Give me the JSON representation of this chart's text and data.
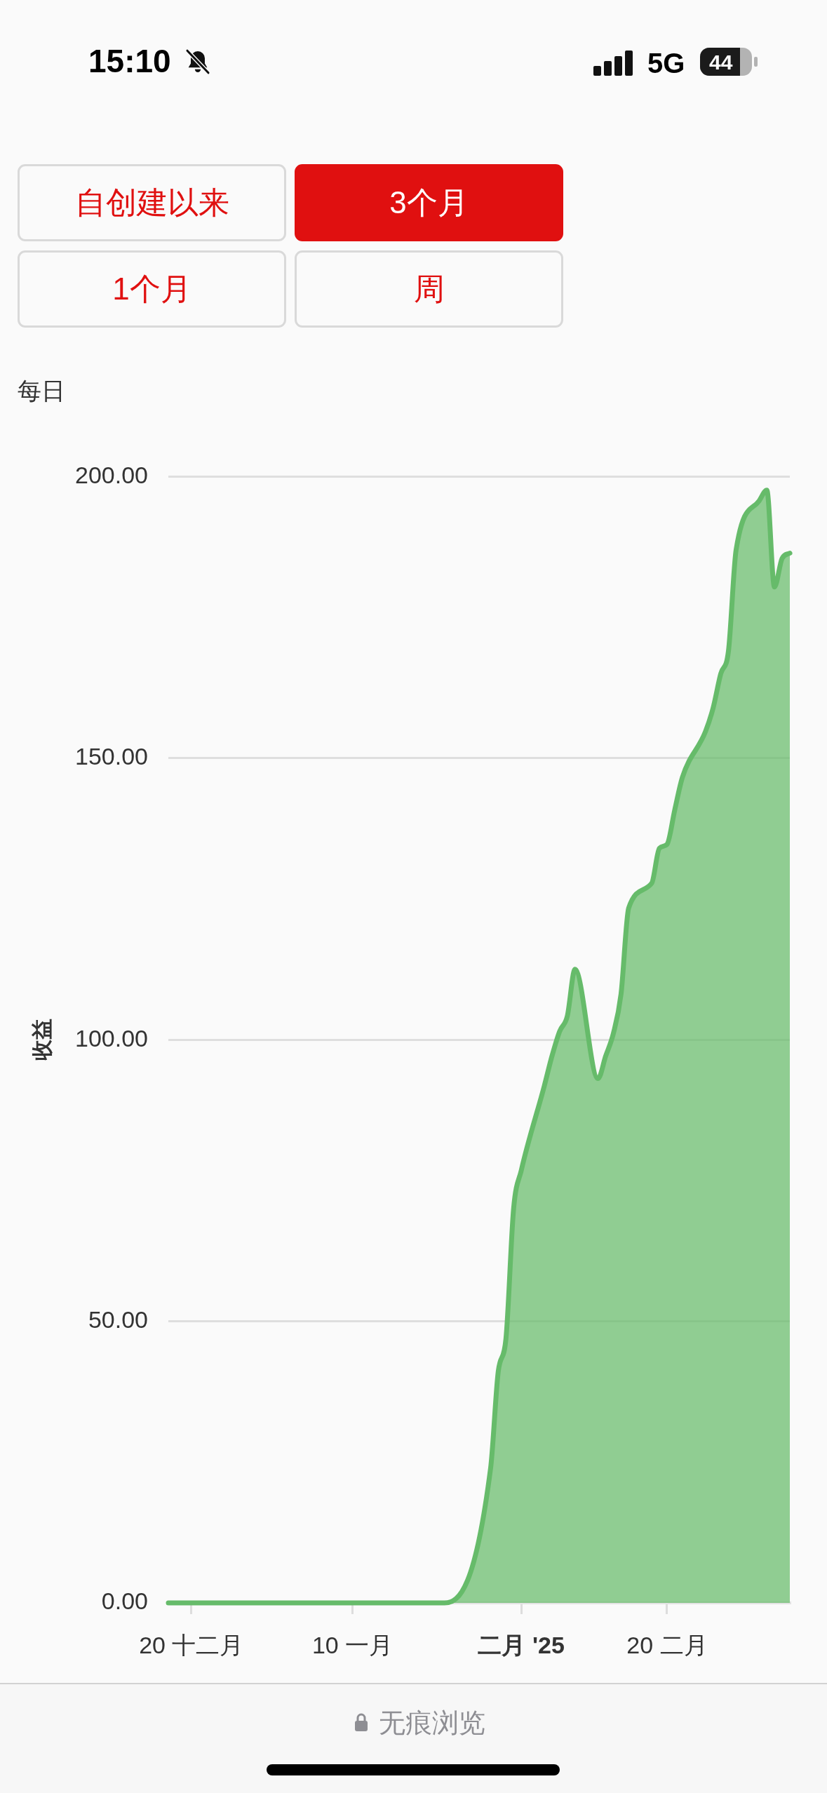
{
  "chart_data": {
    "type": "area",
    "subtitle": "每日",
    "ylabel": "收益",
    "x": [
      "2024-12-17",
      "2025-01-22",
      "2025-01-28",
      "2025-01-29",
      "2025-01-30",
      "2025-01-31",
      "2025-02-01",
      "2025-02-04",
      "2025-02-05",
      "2025-02-06",
      "2025-02-07",
      "2025-02-08",
      "2025-02-11",
      "2025-02-12",
      "2025-02-13",
      "2025-02-14",
      "2025-02-15",
      "2025-02-18",
      "2025-02-19",
      "2025-02-20",
      "2025-02-21",
      "2025-02-22",
      "2025-02-25",
      "2025-02-26",
      "2025-02-27",
      "2025-02-28",
      "2025-03-01",
      "2025-03-04",
      "2025-03-05",
      "2025-03-06",
      "2025-03-07",
      "2025-03-08"
    ],
    "values": [
      0,
      0,
      23.9,
      41.1,
      46.9,
      70.0,
      76.8,
      91.8,
      97.1,
      101.5,
      104.2,
      112.5,
      93.1,
      97.1,
      101.1,
      108.1,
      123.4,
      127.8,
      134.0,
      134.7,
      140.8,
      146.6,
      154.7,
      158.9,
      165.0,
      169.0,
      187.0,
      195.7,
      197.6,
      180.4,
      185.5,
      186.4
    ],
    "color": "#66bb6a",
    "xlim": [
      "2024-12-17",
      "2025-03-08"
    ],
    "xticks": [
      {
        "value": "2024-12-20",
        "label": "20 十二月"
      },
      {
        "value": "2025-01-10",
        "label": "10 一月"
      },
      {
        "value": "2025-02-01",
        "label": "二月 '25"
      },
      {
        "value": "2025-02-20",
        "label": "20 二月"
      }
    ],
    "ylim": [
      0,
      200
    ],
    "yticks": [
      {
        "value": 0,
        "label": "0.00"
      },
      {
        "value": 50,
        "label": "50.00"
      },
      {
        "value": 100,
        "label": "100.00"
      },
      {
        "value": 150,
        "label": "150.00"
      },
      {
        "value": 200,
        "label": "200.00"
      }
    ],
    "grid": "y",
    "annotations": [
      "自创建以来",
      "3个月",
      "1个月",
      "周",
      "15:10",
      "5G",
      "44",
      "无痕浏览"
    ]
  }
}
